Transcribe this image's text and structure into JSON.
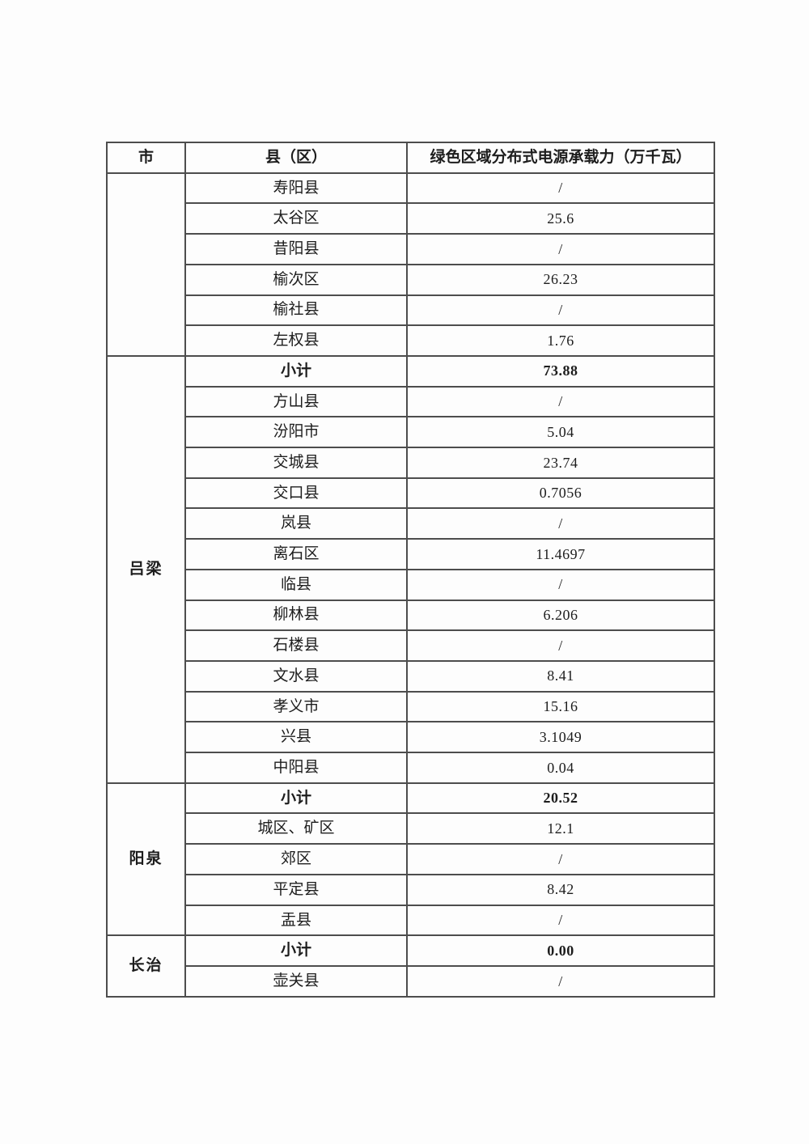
{
  "table": {
    "columns": {
      "city": "市",
      "county": "县（区）",
      "capacity": "绿色区域分布式电源承载力（万千瓦）"
    },
    "colors": {
      "border": "#4d4d4d",
      "text": "#1d1d1d",
      "page_background": "#fdfdfd"
    },
    "groups": [
      {
        "city": "",
        "rows": [
          {
            "county": "寿阳县",
            "value": "/"
          },
          {
            "county": "太谷区",
            "value": "25.6"
          },
          {
            "county": "昔阳县",
            "value": "/"
          },
          {
            "county": "榆次区",
            "value": "26.23"
          },
          {
            "county": "榆社县",
            "value": "/"
          },
          {
            "county": "左权县",
            "value": "1.76"
          }
        ]
      },
      {
        "city": "吕梁",
        "rows": [
          {
            "county": "小计",
            "value": "73.88",
            "bold": true
          },
          {
            "county": "方山县",
            "value": "/"
          },
          {
            "county": "汾阳市",
            "value": "5.04"
          },
          {
            "county": "交城县",
            "value": "23.74"
          },
          {
            "county": "交口县",
            "value": "0.7056"
          },
          {
            "county": "岚县",
            "value": "/"
          },
          {
            "county": "离石区",
            "value": "11.4697"
          },
          {
            "county": "临县",
            "value": "/"
          },
          {
            "county": "柳林县",
            "value": "6.206"
          },
          {
            "county": "石楼县",
            "value": "/"
          },
          {
            "county": "文水县",
            "value": "8.41"
          },
          {
            "county": "孝义市",
            "value": "15.16"
          },
          {
            "county": "兴县",
            "value": "3.1049"
          },
          {
            "county": "中阳县",
            "value": "0.04"
          }
        ]
      },
      {
        "city": "阳泉",
        "rows": [
          {
            "county": "小计",
            "value": "20.52",
            "bold": true
          },
          {
            "county": "城区、矿区",
            "value": "12.1"
          },
          {
            "county": "郊区",
            "value": "/"
          },
          {
            "county": "平定县",
            "value": "8.42"
          },
          {
            "county": "盂县",
            "value": "/"
          }
        ]
      },
      {
        "city": "长治",
        "rows": [
          {
            "county": "小计",
            "value": "0.00",
            "bold": true
          },
          {
            "county": "壶关县",
            "value": "/"
          }
        ]
      }
    ]
  }
}
